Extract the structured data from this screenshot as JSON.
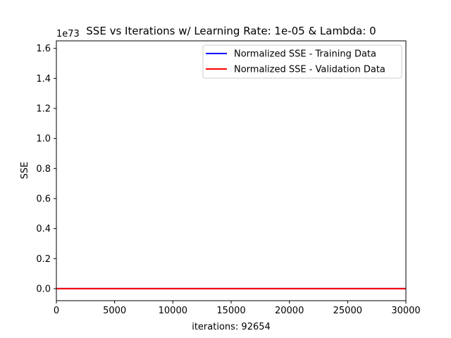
{
  "chart_data": {
    "type": "line",
    "title": "SSE vs Iterations w/ Learning Rate: 1e-05 & Lambda: 0",
    "xlabel": "iterations: 92654",
    "ylabel": "SSE",
    "y_offset_text": "1e73",
    "xlim": [
      0,
      30000
    ],
    "ylim": [
      -0.08,
      1.65
    ],
    "x_ticks": [
      0,
      5000,
      10000,
      15000,
      20000,
      25000,
      30000
    ],
    "x_tick_labels": [
      "0",
      "5000",
      "10000",
      "15000",
      "20000",
      "25000",
      "30000"
    ],
    "y_ticks": [
      0.0,
      0.2,
      0.4,
      0.6,
      0.8,
      1.0,
      1.2,
      1.4,
      1.6
    ],
    "y_tick_labels": [
      "0.0",
      "0.2",
      "0.4",
      "0.6",
      "0.8",
      "1.0",
      "1.2",
      "1.4",
      "1.6"
    ],
    "grid": false,
    "legend_position": "top-right",
    "series": [
      {
        "name": "Normalized SSE - Training Data",
        "color": "#0000ff",
        "x": [
          0,
          30000
        ],
        "y": [
          0,
          0
        ]
      },
      {
        "name": "Normalized SSE - Validation Data",
        "color": "#ff0000",
        "x": [
          0,
          30000
        ],
        "y": [
          0,
          0
        ]
      }
    ]
  }
}
